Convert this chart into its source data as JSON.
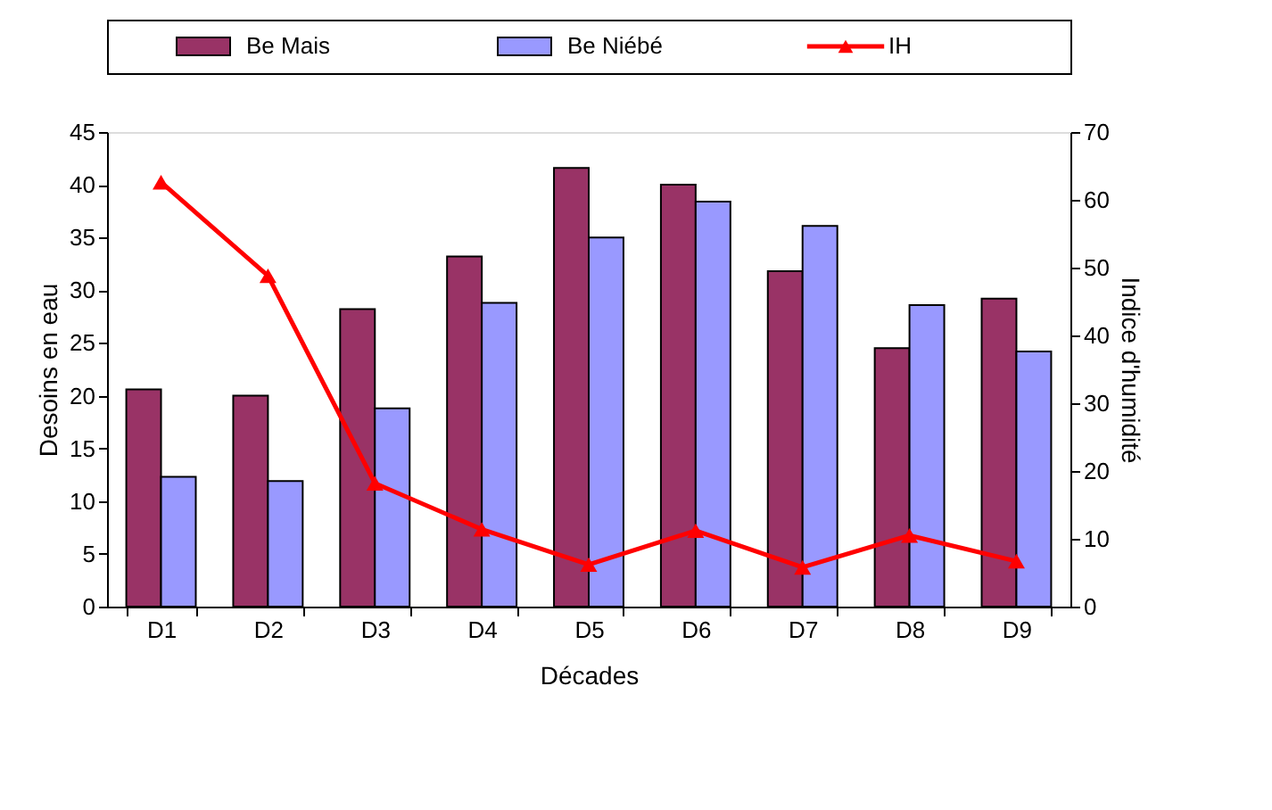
{
  "chart_data": {
    "type": "bar",
    "xlabel": "Décades",
    "ylabel": "Desoins en eau",
    "y2label": "Indice d'humidité",
    "categories": [
      "D1",
      "D2",
      "D3",
      "D4",
      "D5",
      "D6",
      "D7",
      "D8",
      "D9"
    ],
    "series": [
      {
        "name": "Be Mais",
        "color": "#993366",
        "values": [
          20.6,
          20,
          28.2,
          33.2,
          41.6,
          40,
          31.8,
          24.5,
          29.2
        ]
      },
      {
        "name": "Be Niébé",
        "color": "#9999ff",
        "values": [
          12.3,
          11.9,
          18.8,
          28.8,
          35,
          38.4,
          36.1,
          28.6,
          24.2
        ]
      },
      {
        "name": "IH",
        "type": "line",
        "axis": "y2",
        "color": "#ff0000",
        "marker": "triangle",
        "values": [
          62.6,
          48.8,
          18.2,
          11.4,
          6.2,
          11.2,
          5.8,
          10.5,
          6.7
        ]
      }
    ],
    "ylim": [
      0,
      45
    ],
    "yticks": [
      0,
      5,
      10,
      15,
      20,
      25,
      30,
      35,
      40,
      45
    ],
    "y2lim": [
      0,
      70
    ],
    "y2ticks": [
      0,
      10,
      20,
      30,
      40,
      50,
      60,
      70
    ],
    "grid": false,
    "legend": "top"
  }
}
